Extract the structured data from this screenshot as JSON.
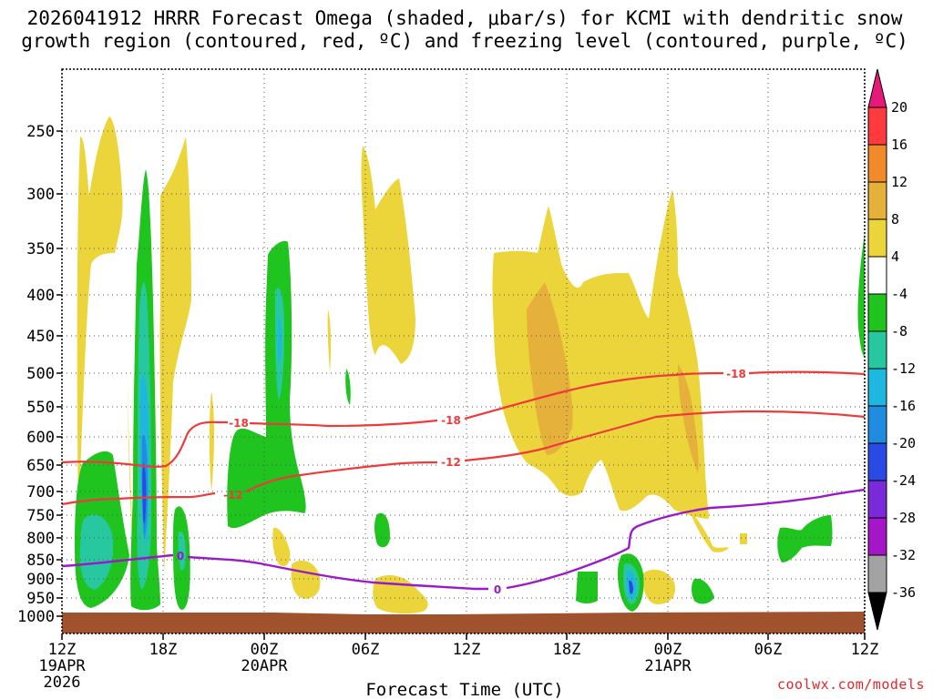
{
  "chart_data": {
    "type": "heatmap",
    "title_lines": [
      "2026041912 HRRR Forecast Omega (shaded, μbar/s) for KCMI with dendritic snow",
      "growth region (contoured, red, ºC) and freezing level (contoured, purple, ºC)"
    ],
    "xlabel": "Forecast Time (UTC)",
    "ylabel": "",
    "x_ticks": [
      {
        "hour": 0,
        "label": "12Z",
        "sub": [
          "19APR",
          "2026"
        ]
      },
      {
        "hour": 6,
        "label": "18Z",
        "sub": []
      },
      {
        "hour": 12,
        "label": "00Z",
        "sub": [
          "20APR"
        ]
      },
      {
        "hour": 18,
        "label": "06Z",
        "sub": []
      },
      {
        "hour": 24,
        "label": "12Z",
        "sub": []
      },
      {
        "hour": 30,
        "label": "18Z",
        "sub": []
      },
      {
        "hour": 36,
        "label": "00Z",
        "sub": [
          "21APR"
        ]
      },
      {
        "hour": 42,
        "label": "06Z",
        "sub": []
      },
      {
        "hour": 48,
        "label": "12Z",
        "sub": []
      }
    ],
    "y_ticks": [
      "250",
      "300",
      "350",
      "400",
      "450",
      "500",
      "550",
      "600",
      "650",
      "700",
      "750",
      "800",
      "850",
      "900",
      "950",
      "1000"
    ],
    "colorbar": {
      "labels": [
        "20",
        "16",
        "12",
        "8",
        "4",
        "-4",
        "-8",
        "-12",
        "-16",
        "-20",
        "-24",
        "-28",
        "-32",
        "-36"
      ],
      "colors": [
        "#ff3a3f",
        "#f08a2b",
        "#e6b13a",
        "#ebd53a",
        "#ffffff",
        "#1fc41f",
        "#27c7a0",
        "#1fb6e0",
        "#1f8ce0",
        "#2a4ae6",
        "#7a2ad8",
        "#a416c8",
        "#a3a3a3"
      ],
      "top_color": "#e6197a",
      "bottom_color": "#000000"
    },
    "contours": [
      {
        "name": "dendritic snow growth -18C",
        "color": "#ee3a3a",
        "label": "-18"
      },
      {
        "name": "dendritic snow growth -12C",
        "color": "#ee3a3a",
        "label": "-12"
      },
      {
        "name": "freezing level 0C",
        "color": "#9a1ac8",
        "label": "0"
      }
    ],
    "credit": "coolwx.com/models"
  }
}
